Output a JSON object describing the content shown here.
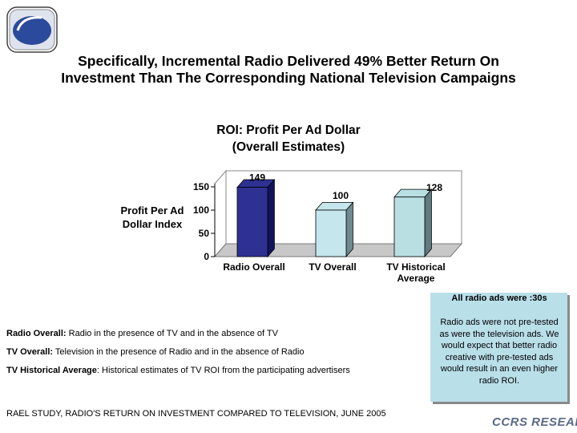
{
  "header": {
    "headline_line1": "Specifically, Incremental Radio Delivered 49% Better Return On",
    "headline_line2": "Investment Than The Corresponding National Television Campaigns"
  },
  "chart_data": {
    "type": "bar",
    "title_line1": "ROI:  Profit Per Ad Dollar",
    "title_line2": "(Overall Estimates)",
    "ylabel_line1": "Profit Per Ad",
    "ylabel_line2": "Dollar Index",
    "categories": [
      "Radio Overall",
      "TV Overall",
      "TV Historical Average"
    ],
    "category_lines": [
      [
        "Radio Overall"
      ],
      [
        "TV Overall"
      ],
      [
        "TV Historical",
        "Average"
      ]
    ],
    "values": [
      149,
      100,
      128
    ],
    "colors": [
      "#2e3192",
      "#c5e6ec",
      "#b9dfe3"
    ],
    "side_colors": [
      "#12145a",
      "#6d8a90",
      "#5f7a80"
    ],
    "yticks": [
      0,
      50,
      100,
      150
    ],
    "ylim": [
      0,
      150
    ],
    "grid": false
  },
  "note": {
    "header": "All radio ads were :30s",
    "text": "Radio ads were not pre-tested as were the television ads.  We would expect that better radio creative with pre-tested ads would result in an even higher radio ROI."
  },
  "definitions": [
    {
      "term": "Radio Overall:",
      "text": "  Radio in the presence of TV and in the absence of TV"
    },
    {
      "term": "TV Overall:",
      "text": "  Television in the presence of Radio and in the absence of Radio"
    },
    {
      "term": "TV Historical Average",
      "text": ":  Historical estimates of TV ROI from the participating advertisers"
    }
  ],
  "source": "RAEL STUDY, RADIO'S RETURN ON INVESTMENT COMPARED TO TELEVISION, JUNE 2005",
  "brand": "CCRS RESEARCH"
}
